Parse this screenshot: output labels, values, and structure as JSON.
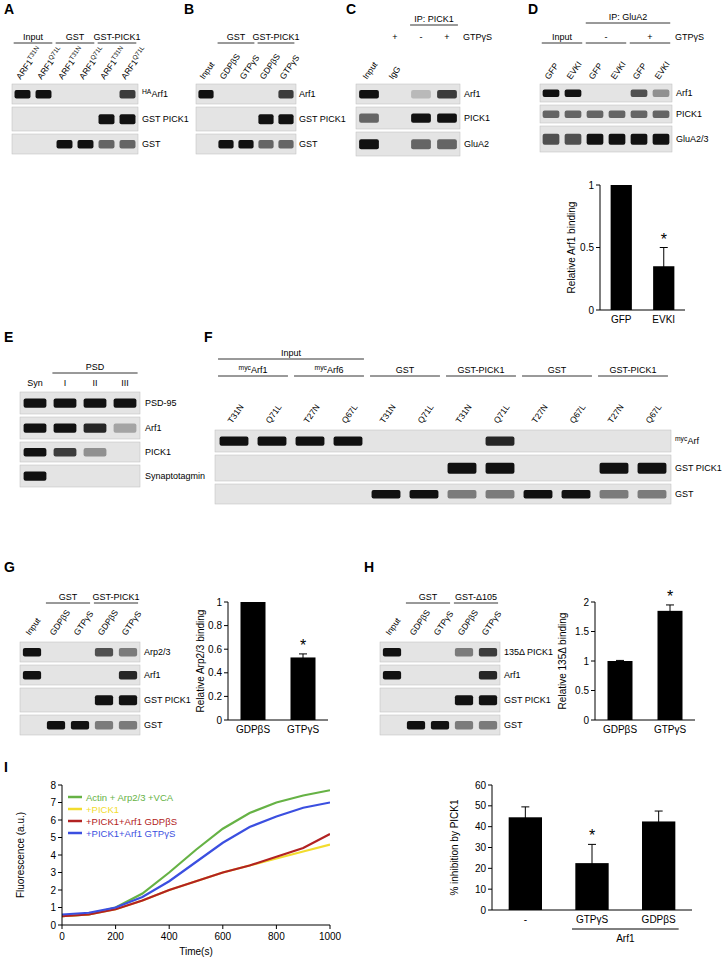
{
  "panels": [
    {
      "letter": "A",
      "headers": [
        {
          "text": "Input",
          "span": [
            0,
            1
          ],
          "level": 0
        },
        {
          "text": "GST",
          "span": [
            2,
            3
          ],
          "level": 0
        },
        {
          "text": "GST-PICK1",
          "span": [
            4,
            5
          ],
          "level": 0
        }
      ],
      "lanes": [
        {
          "text": "ARF1",
          "sup_after": "T31N"
        },
        {
          "text": "ARF1",
          "sup_after": "Q71L"
        },
        {
          "text": "ARF1",
          "sup_after": "T31N"
        },
        {
          "text": "ARF1",
          "sup_after": "Q71L"
        },
        {
          "text": "ARF1",
          "sup_after": "T31N"
        },
        {
          "text": "ARF1",
          "sup_after": "Q71L"
        }
      ],
      "rows": [
        {
          "label": {
            "sup_before": "HA",
            "text": "Arf1"
          },
          "bands": [
            1,
            1,
            0,
            0,
            0,
            0.8
          ]
        },
        {
          "label": "GST PICK1",
          "bands": [
            0,
            0,
            0,
            0,
            1,
            1
          ]
        },
        {
          "label": "GST",
          "bands": [
            0,
            0,
            1,
            1,
            0.6,
            0.6
          ]
        }
      ]
    },
    {
      "letter": "B",
      "headers": [
        {
          "text": "GST",
          "span": [
            1,
            2
          ],
          "level": 0
        },
        {
          "text": "GST-PICK1",
          "span": [
            3,
            4
          ],
          "level": 0
        }
      ],
      "lanes": [
        "Input",
        "GDPβS",
        "GTPγS",
        "GDPβS",
        "GTPγS"
      ],
      "rows": [
        {
          "label": "Arf1",
          "bands": [
            1,
            0,
            0,
            0,
            0.8
          ]
        },
        {
          "label": "GST PICK1",
          "bands": [
            0,
            0,
            0,
            1,
            1
          ]
        },
        {
          "label": "GST",
          "bands": [
            0,
            1,
            1,
            0.6,
            0.6
          ]
        }
      ]
    },
    {
      "letter": "C",
      "headers": [
        {
          "text": "IP: PICK1",
          "span": [
            2,
            3
          ],
          "level": 0
        },
        {
          "text": "+",
          "span": [
            1,
            1
          ],
          "level": 1
        },
        {
          "text": "-",
          "span": [
            2,
            2
          ],
          "level": 1
        },
        {
          "text": "+",
          "span": [
            3,
            3
          ],
          "level": 1
        }
      ],
      "side_label": {
        "text": "GTPγS",
        "level": 1
      },
      "lanes": [
        "Input",
        "IgG",
        null,
        null
      ],
      "rows": [
        {
          "label": "Arf1",
          "bands": [
            1,
            0,
            0.2,
            0.8
          ]
        },
        {
          "label": "PICK1",
          "bands": [
            0.6,
            0,
            1,
            1
          ]
        },
        {
          "label": "GluA2",
          "bands": [
            1,
            0,
            0.6,
            0.6
          ]
        }
      ]
    },
    {
      "letter": "D",
      "headers": [
        {
          "text": "IP: GluA2",
          "span": [
            2,
            5
          ],
          "level": 0
        },
        {
          "text": "Input",
          "span": [
            0,
            1
          ],
          "level": 1
        },
        {
          "text": "-",
          "span": [
            2,
            3
          ],
          "level": 1
        },
        {
          "text": "+",
          "span": [
            4,
            5
          ],
          "level": 1
        }
      ],
      "side_label": {
        "text": "GTPγS",
        "level": 1
      },
      "lanes": [
        "GFP",
        "EVKI",
        "GFP",
        "EVKI",
        "GFP",
        "EVKI"
      ],
      "rows": [
        {
          "label": "Arf1",
          "bands": [
            1,
            1,
            0,
            0,
            0.7,
            0.4
          ]
        },
        {
          "label": "PICK1",
          "bands": [
            0.6,
            0.6,
            0.6,
            0.6,
            0.6,
            0.6
          ]
        },
        {
          "label": "GluA2/3",
          "bands": [
            0.7,
            0.7,
            1,
            1,
            1,
            1
          ]
        }
      ]
    },
    {
      "letter": "E",
      "headers": [
        {
          "text": "PSD",
          "span": [
            1,
            3
          ],
          "level": 0
        }
      ],
      "lanes": [
        "Syn",
        "I",
        "II",
        "III"
      ],
      "rows": [
        {
          "label": "PSD-95",
          "bands": [
            1,
            1,
            1,
            1
          ]
        },
        {
          "label": "Arf1",
          "bands": [
            1,
            1,
            0.9,
            0.3
          ]
        },
        {
          "label": "PICK1",
          "bands": [
            1,
            0.8,
            0.4,
            0
          ]
        },
        {
          "label": "Synaptotagmin",
          "bands": [
            1,
            0,
            0,
            0
          ]
        }
      ]
    },
    {
      "letter": "F",
      "headers": [
        {
          "text": "Input",
          "span": [
            0,
            3
          ],
          "level": 0
        },
        {
          "text": {
            "sup_before": "myc",
            "text": "Arf1"
          },
          "span": [
            0,
            1
          ],
          "level": 1
        },
        {
          "text": {
            "sup_before": "myc",
            "text": "Arf6"
          },
          "span": [
            2,
            3
          ],
          "level": 1
        },
        {
          "text": "GST",
          "span": [
            4,
            5
          ],
          "level": 1
        },
        {
          "text": "GST-PICK1",
          "span": [
            6,
            7
          ],
          "level": 1
        },
        {
          "text": "GST",
          "span": [
            8,
            9
          ],
          "level": 1
        },
        {
          "text": "GST-PICK1",
          "span": [
            10,
            11
          ],
          "level": 1
        }
      ],
      "lanes": [
        "T31N",
        "Q71L",
        "T27N",
        "Q67L",
        "T31N",
        "Q71L",
        "T31N",
        "Q71L",
        "T27N",
        "Q67L",
        "T27N",
        "Q67L"
      ],
      "rows": [
        {
          "label": {
            "sup_before": "myc",
            "text": "Arf"
          },
          "bands": [
            1,
            1,
            1,
            1,
            0,
            0,
            0,
            0.9,
            0,
            0,
            0,
            0
          ]
        },
        {
          "label": "GST PICK1",
          "bands": [
            0,
            0,
            0,
            0,
            0,
            0,
            1,
            1,
            0,
            0,
            1,
            1
          ]
        },
        {
          "label": "GST",
          "bands": [
            0,
            0,
            0,
            0,
            1,
            1,
            0.5,
            0.5,
            1,
            1,
            0.5,
            0.5
          ]
        }
      ]
    },
    {
      "letter": "G",
      "headers": [
        {
          "text": "GST",
          "span": [
            1,
            2
          ],
          "level": 0
        },
        {
          "text": "GST-PICK1",
          "span": [
            3,
            4
          ],
          "level": 0
        }
      ],
      "lanes": [
        "Input",
        "GDPβS",
        "GTPγS",
        "GDPβS",
        "GTPγS"
      ],
      "rows": [
        {
          "label": "Arp2/3",
          "bands": [
            1,
            0,
            0,
            0.7,
            0.5
          ]
        },
        {
          "label": "Arf1",
          "bands": [
            1,
            0,
            0,
            0,
            0.9
          ]
        },
        {
          "label": "GST PICK1",
          "bands": [
            0,
            0,
            0,
            1,
            1
          ]
        },
        {
          "label": "GST",
          "bands": [
            0,
            1,
            1,
            0.5,
            0.5
          ]
        }
      ]
    },
    {
      "letter": "H",
      "headers": [
        {
          "text": "GST",
          "span": [
            1,
            2
          ],
          "level": 0
        },
        {
          "text": "GST-Δ105",
          "span": [
            3,
            4
          ],
          "level": 0
        }
      ],
      "lanes": [
        "Input",
        "GDPβS",
        "GTPγS",
        "GDPβS",
        "GTPγS"
      ],
      "rows": [
        {
          "label": "135Δ PICK1",
          "bands": [
            1,
            0,
            0,
            0.5,
            0.8
          ]
        },
        {
          "label": "Arf1",
          "bands": [
            1,
            0,
            0,
            0,
            0.9
          ]
        },
        {
          "label": "GST PICK1",
          "bands": [
            0,
            0,
            0,
            1,
            1
          ]
        },
        {
          "label": "GST",
          "bands": [
            0,
            1,
            1,
            0.5,
            0.5
          ]
        }
      ]
    },
    {
      "letter": "I"
    }
  ],
  "chart_data": [
    {
      "type": "bar",
      "y_label": "Relative Arf1 binding",
      "categories": [
        "GFP",
        "EVKI"
      ],
      "values": [
        1,
        0.35
      ],
      "errors": [
        0,
        0.15
      ],
      "color": "#000000",
      "ylim": [
        0,
        1
      ],
      "yticks": [
        0,
        0.5,
        1
      ],
      "annotations": [
        {
          "text": "*",
          "category": "EVKI"
        }
      ]
    },
    {
      "type": "bar",
      "y_label": "Relative Arp2/3 binding",
      "categories": [
        "GDPβS",
        "GTPγS"
      ],
      "values": [
        1,
        0.53
      ],
      "errors": [
        0,
        0.03
      ],
      "color": "#000000",
      "ylim": [
        0,
        1
      ],
      "yticks": [
        0,
        0.2,
        0.4,
        0.6,
        0.8,
        1
      ],
      "annotations": [
        {
          "text": "*",
          "category": "GTPγS"
        }
      ]
    },
    {
      "type": "bar",
      "y_label": "Relative 135Δ binding",
      "categories": [
        "GDPβS",
        "GTPγS"
      ],
      "values": [
        1,
        1.85
      ],
      "errors": [
        0.01,
        0.1
      ],
      "color": "#000000",
      "ylim": [
        0,
        2
      ],
      "yticks": [
        0,
        0.5,
        1,
        1.5,
        2
      ],
      "annotations": [
        {
          "text": "*",
          "category": "GTPγS"
        }
      ]
    },
    {
      "type": "line",
      "x_label": "Time(s)",
      "y_label": "Fluorescence (a.u.)",
      "x": [
        0,
        100,
        200,
        300,
        400,
        500,
        600,
        700,
        800,
        900,
        1000
      ],
      "xlim": [
        0,
        1000
      ],
      "xticks": [
        0,
        200,
        400,
        600,
        800,
        1000
      ],
      "ylim": [
        0,
        8
      ],
      "yticks": [
        0,
        1,
        2,
        3,
        4,
        5,
        6,
        7,
        8
      ],
      "legend": "upper left",
      "series": [
        {
          "name": "Actin + Arp2/3 +VCA",
          "color": "#66b245",
          "values": [
            0.5,
            0.6,
            1.0,
            1.8,
            3.0,
            4.3,
            5.5,
            6.4,
            7.0,
            7.4,
            7.7
          ]
        },
        {
          "name": "+PICK1",
          "color": "#f2dc2e",
          "values": [
            0.5,
            0.6,
            0.9,
            1.4,
            2.0,
            2.5,
            3.0,
            3.4,
            3.8,
            4.2,
            4.6
          ]
        },
        {
          "name": "+PICK1+Arf1 GDPβS",
          "color": "#b22222",
          "values": [
            0.5,
            0.6,
            0.9,
            1.4,
            2.0,
            2.5,
            3.0,
            3.4,
            3.9,
            4.4,
            5.2
          ]
        },
        {
          "name": "+PICK1+Arf1 GTPγS",
          "color": "#3b4fe0",
          "values": [
            0.6,
            0.7,
            1.0,
            1.6,
            2.5,
            3.6,
            4.7,
            5.6,
            6.2,
            6.7,
            7.0
          ]
        }
      ]
    },
    {
      "type": "bar",
      "y_label": "% inhibition by PICK1",
      "categories": [
        "-",
        "GTPγS",
        "GDPβS"
      ],
      "values": [
        44.5,
        22.5,
        42.5
      ],
      "errors": [
        5,
        9,
        5
      ],
      "color": "#000000",
      "ylim": [
        0,
        60
      ],
      "yticks": [
        0,
        10,
        20,
        30,
        40,
        50,
        60
      ],
      "annotations": [
        {
          "text": "*",
          "category": "GTPγS"
        }
      ],
      "category_group": {
        "text": "Arf1",
        "categories": [
          "GTPγS",
          "GDPβS"
        ]
      }
    }
  ]
}
